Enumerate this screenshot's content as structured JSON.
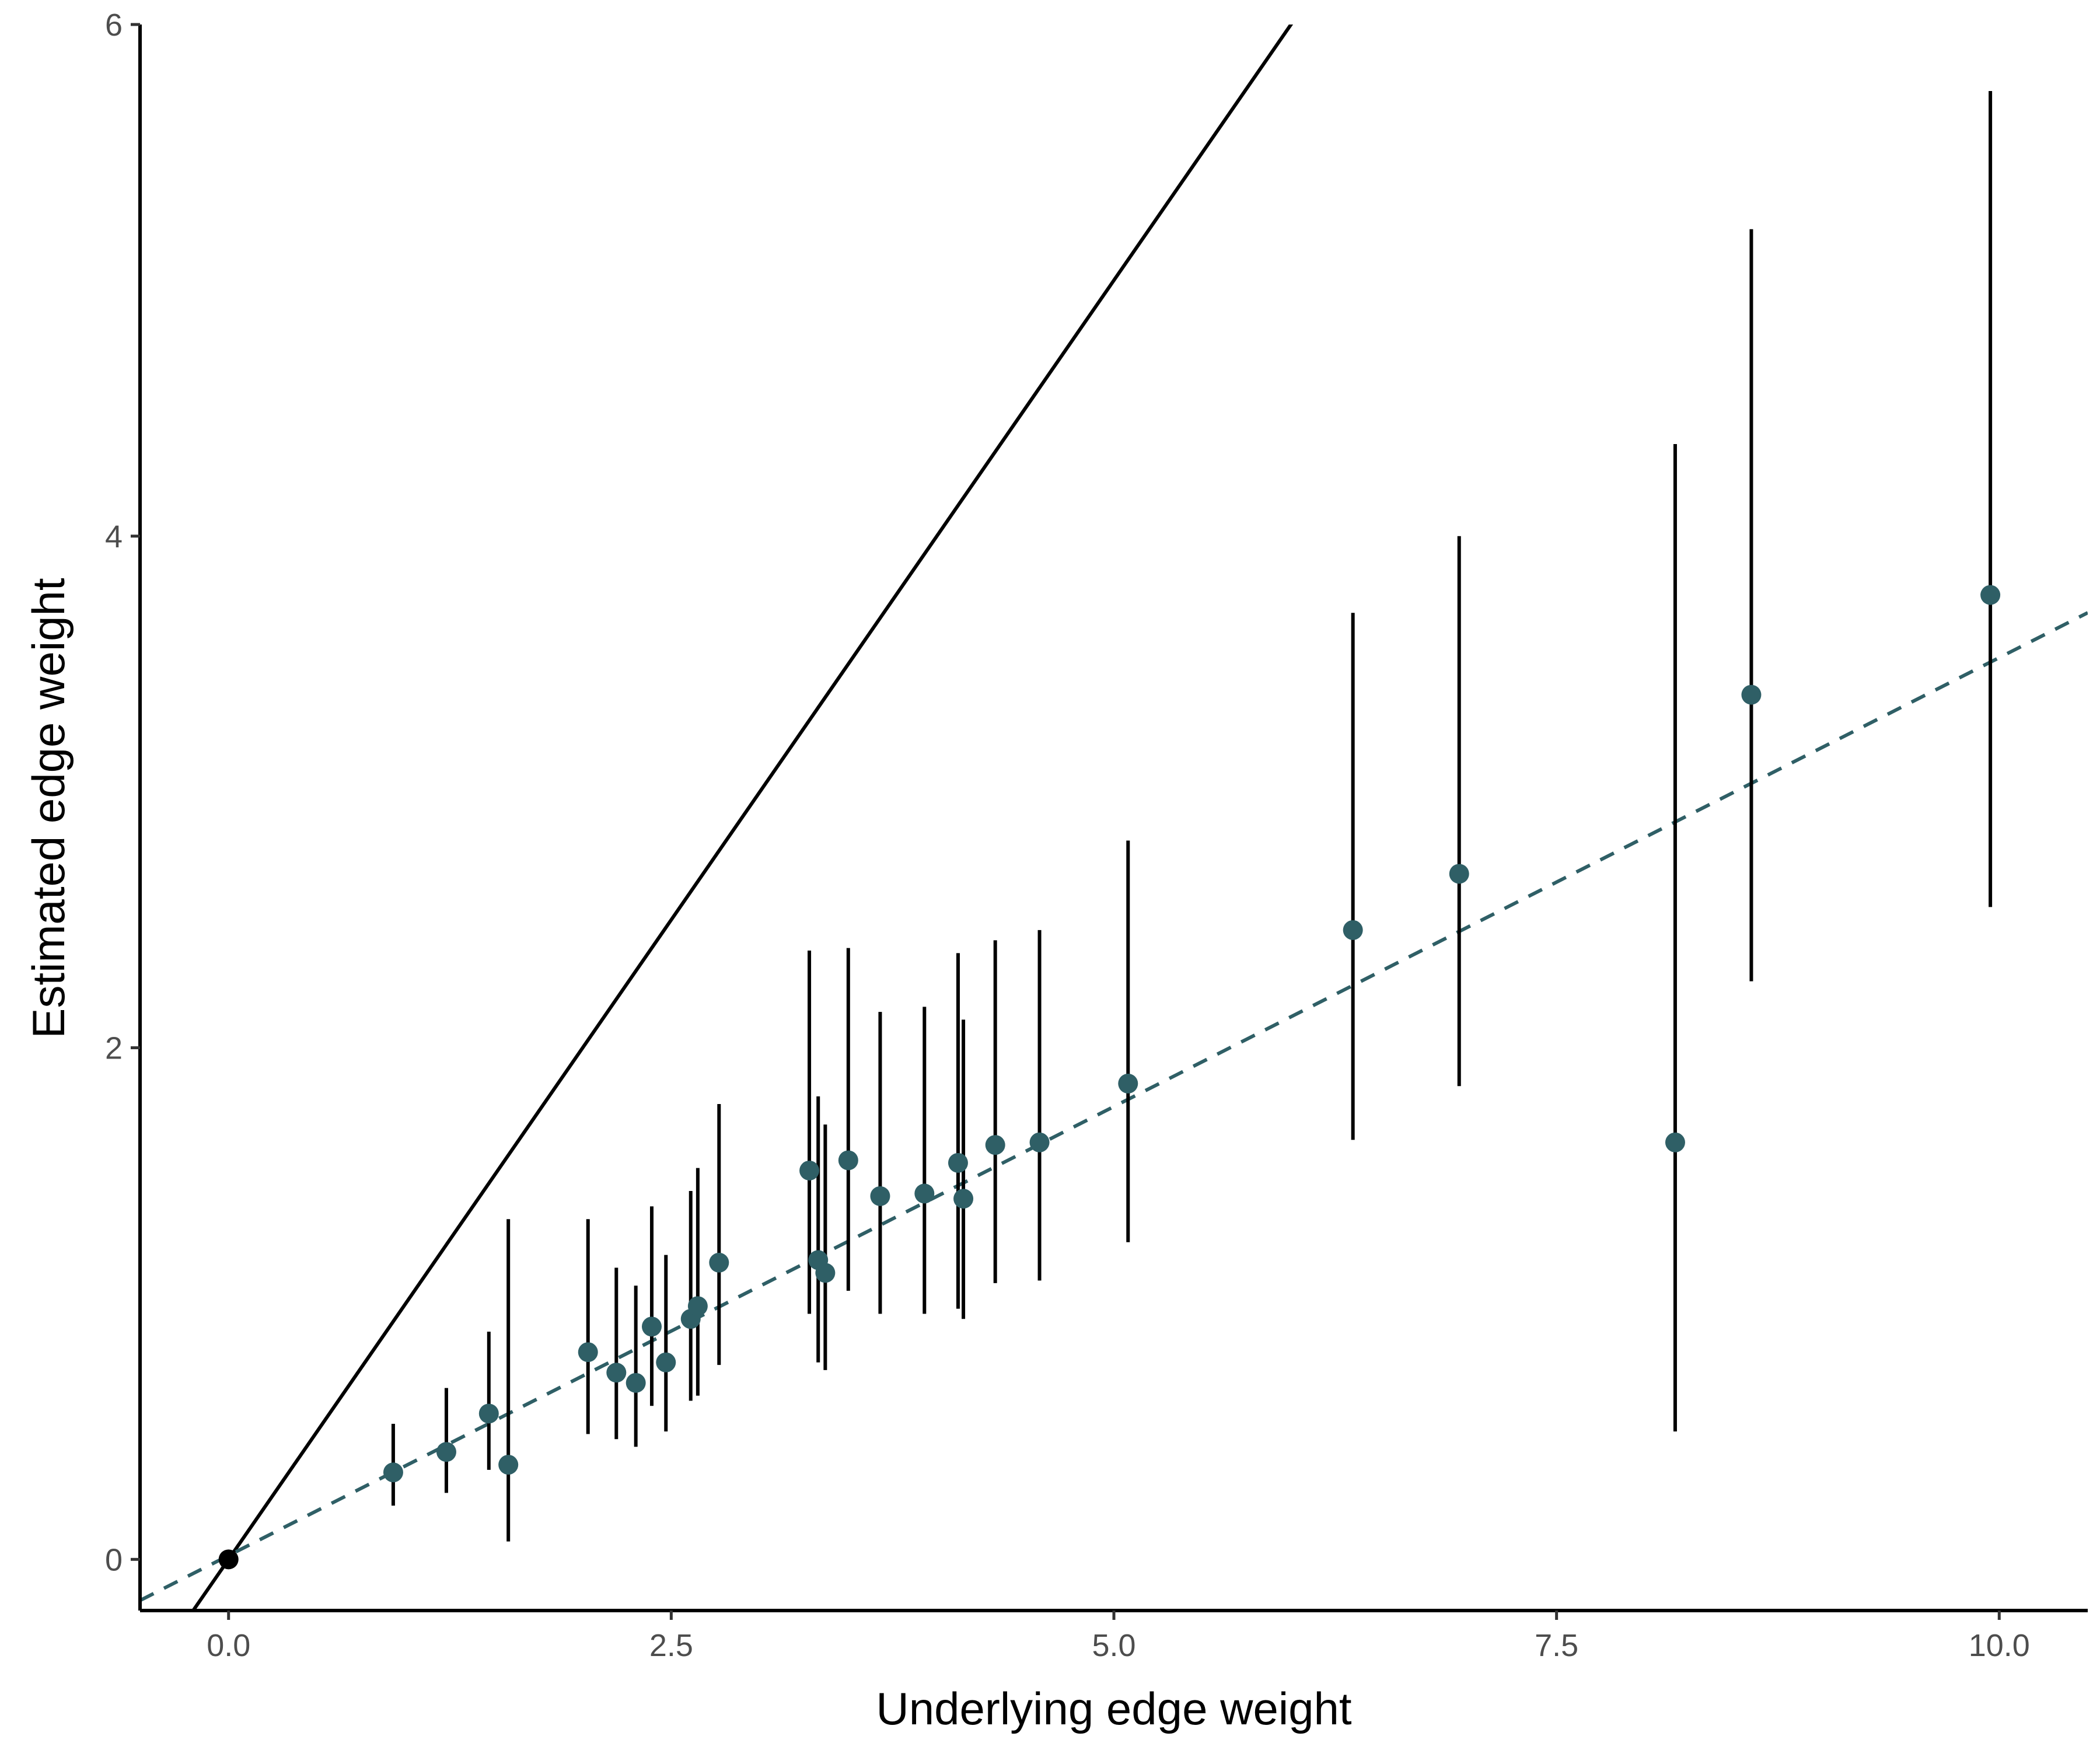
{
  "chart_data": {
    "type": "scatter",
    "title": "",
    "xlabel": "Underlying edge weight",
    "ylabel": "Estimated edge weight",
    "xlim": [
      -0.5,
      10.5
    ],
    "ylim": [
      -0.2,
      6.0
    ],
    "x_ticks": [
      {
        "value": 0.0,
        "label": "0.0"
      },
      {
        "value": 2.5,
        "label": "2.5"
      },
      {
        "value": 5.0,
        "label": "5.0"
      },
      {
        "value": 7.5,
        "label": "7.5"
      },
      {
        "value": 10.0,
        "label": "10.0"
      }
    ],
    "y_ticks": [
      {
        "value": 0,
        "label": "0"
      },
      {
        "value": 2,
        "label": "2"
      },
      {
        "value": 4,
        "label": "4"
      },
      {
        "value": 6,
        "label": "6"
      }
    ],
    "grid": false,
    "legend": "none",
    "colors": {
      "points": "#2f5f66",
      "origin_point": "#000000",
      "error_bars": "#000000",
      "identity_line": "#000000",
      "fit_line": "#2f5f66",
      "axes": "#000000",
      "tick_labels": "#4d4d4d"
    },
    "reference_lines": [
      {
        "kind": "identity",
        "style": "solid",
        "slope": 1.0,
        "intercept": 0.0
      },
      {
        "kind": "fit",
        "style": "dashed",
        "slope": 0.351,
        "intercept": 0.015
      }
    ],
    "origin_point": {
      "x": 0.0,
      "y": 0.0
    },
    "series": [
      {
        "points": [
          {
            "x": 0.93,
            "y": 0.34,
            "lo": 0.21,
            "hi": 0.53
          },
          {
            "x": 1.23,
            "y": 0.42,
            "lo": 0.26,
            "hi": 0.67
          },
          {
            "x": 1.47,
            "y": 0.57,
            "lo": 0.35,
            "hi": 0.89
          },
          {
            "x": 1.58,
            "y": 0.37,
            "lo": 0.07,
            "hi": 1.33
          },
          {
            "x": 2.03,
            "y": 0.81,
            "lo": 0.49,
            "hi": 1.33
          },
          {
            "x": 2.19,
            "y": 0.73,
            "lo": 0.47,
            "hi": 1.14
          },
          {
            "x": 2.3,
            "y": 0.69,
            "lo": 0.44,
            "hi": 1.07
          },
          {
            "x": 2.39,
            "y": 0.91,
            "lo": 0.6,
            "hi": 1.38
          },
          {
            "x": 2.47,
            "y": 0.77,
            "lo": 0.5,
            "hi": 1.19
          },
          {
            "x": 2.61,
            "y": 0.94,
            "lo": 0.62,
            "hi": 1.44
          },
          {
            "x": 2.65,
            "y": 0.99,
            "lo": 0.64,
            "hi": 1.53
          },
          {
            "x": 2.77,
            "y": 1.16,
            "lo": 0.76,
            "hi": 1.78
          },
          {
            "x": 3.28,
            "y": 1.52,
            "lo": 0.96,
            "hi": 2.38
          },
          {
            "x": 3.33,
            "y": 1.17,
            "lo": 0.77,
            "hi": 1.81
          },
          {
            "x": 3.37,
            "y": 1.12,
            "lo": 0.74,
            "hi": 1.7
          },
          {
            "x": 3.5,
            "y": 1.56,
            "lo": 1.05,
            "hi": 2.39
          },
          {
            "x": 3.68,
            "y": 1.42,
            "lo": 0.96,
            "hi": 2.14
          },
          {
            "x": 3.93,
            "y": 1.43,
            "lo": 0.96,
            "hi": 2.16
          },
          {
            "x": 4.12,
            "y": 1.55,
            "lo": 0.98,
            "hi": 2.37
          },
          {
            "x": 4.15,
            "y": 1.41,
            "lo": 0.94,
            "hi": 2.11
          },
          {
            "x": 4.33,
            "y": 1.62,
            "lo": 1.08,
            "hi": 2.42
          },
          {
            "x": 4.58,
            "y": 1.63,
            "lo": 1.09,
            "hi": 2.46
          },
          {
            "x": 5.08,
            "y": 1.86,
            "lo": 1.24,
            "hi": 2.81
          },
          {
            "x": 6.35,
            "y": 2.46,
            "lo": 1.64,
            "hi": 3.7
          },
          {
            "x": 6.95,
            "y": 2.68,
            "lo": 1.85,
            "hi": 4.0
          },
          {
            "x": 8.17,
            "y": 1.63,
            "lo": 0.5,
            "hi": 4.36
          },
          {
            "x": 8.6,
            "y": 3.38,
            "lo": 2.26,
            "hi": 5.2
          },
          {
            "x": 9.95,
            "y": 3.77,
            "lo": 2.55,
            "hi": 5.74
          }
        ]
      }
    ]
  }
}
